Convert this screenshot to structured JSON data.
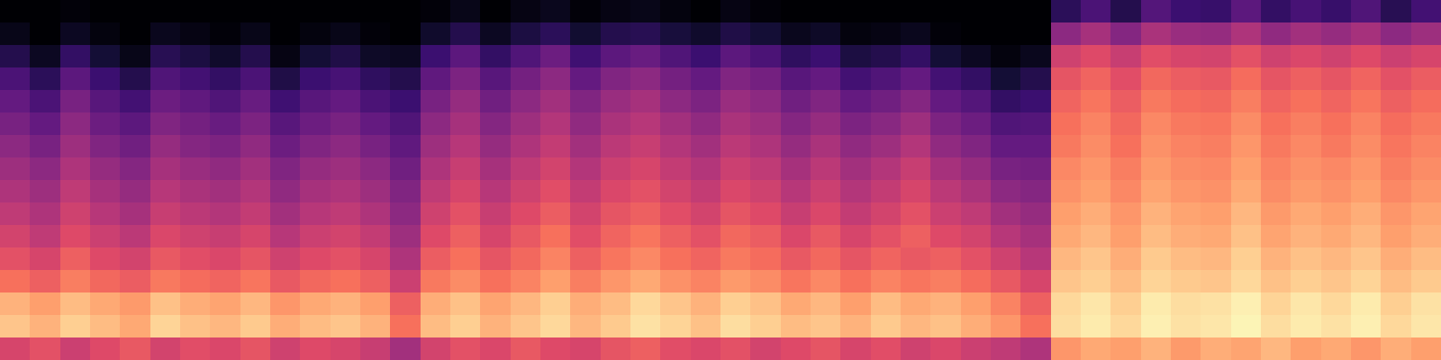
{
  "chart_data": {
    "type": "heatmap",
    "color": "magma",
    "tick_labels": false,
    "zlim": [
      0,
      100
    ],
    "cells": [
      [
        58,
        62,
        55,
        60,
        64,
        57,
        61,
        59,
        63,
        56,
        60,
        58,
        54,
        45,
        57,
        62,
        59,
        64,
        60,
        58,
        63,
        66,
        61,
        59,
        62,
        57,
        60,
        63,
        58,
        61,
        56,
        59,
        55,
        52,
        48,
        78,
        82,
        80,
        84,
        79,
        83,
        81,
        85,
        80,
        82,
        78,
        83,
        80
      ],
      [
        88,
        84,
        90,
        86,
        82,
        91,
        87,
        85,
        89,
        83,
        86,
        88,
        84,
        70,
        86,
        90,
        84,
        88,
        92,
        85,
        89,
        94,
        91,
        87,
        93,
        90,
        86,
        88,
        84,
        89,
        85,
        87,
        83,
        78,
        70,
        93,
        96,
        92,
        97,
        94,
        95,
        98,
        93,
        96,
        94,
        97,
        92,
        95
      ],
      [
        84,
        80,
        86,
        82,
        79,
        87,
        83,
        81,
        85,
        78,
        82,
        84,
        80,
        66,
        83,
        87,
        81,
        85,
        90,
        83,
        86,
        92,
        88,
        84,
        90,
        87,
        82,
        85,
        80,
        86,
        82,
        84,
        80,
        74,
        66,
        92,
        95,
        90,
        96,
        93,
        94,
        97,
        91,
        95,
        92,
        96,
        90,
        94
      ],
      [
        70,
        66,
        73,
        68,
        65,
        72,
        69,
        67,
        71,
        64,
        68,
        70,
        66,
        55,
        72,
        76,
        70,
        74,
        80,
        73,
        78,
        82,
        77,
        74,
        79,
        76,
        71,
        75,
        70,
        74,
        71,
        73,
        69,
        64,
        58,
        88,
        90,
        86,
        91,
        89,
        88,
        92,
        87,
        90,
        88,
        91,
        86,
        89
      ],
      [
        62,
        58,
        66,
        60,
        57,
        64,
        61,
        59,
        63,
        56,
        60,
        62,
        58,
        48,
        65,
        70,
        63,
        68,
        74,
        66,
        71,
        75,
        70,
        67,
        72,
        69,
        64,
        68,
        63,
        67,
        64,
        66,
        62,
        56,
        50,
        85,
        88,
        83,
        89,
        86,
        85,
        90,
        84,
        87,
        85,
        88,
        83,
        86
      ],
      [
        57,
        52,
        60,
        55,
        51,
        59,
        56,
        54,
        58,
        50,
        55,
        57,
        53,
        44,
        60,
        66,
        58,
        64,
        70,
        61,
        67,
        71,
        66,
        62,
        68,
        65,
        59,
        64,
        58,
        62,
        66,
        60,
        57,
        50,
        46,
        82,
        85,
        80,
        86,
        83,
        82,
        87,
        81,
        84,
        82,
        85,
        80,
        83
      ],
      [
        52,
        48,
        56,
        50,
        46,
        54,
        51,
        49,
        53,
        45,
        50,
        52,
        48,
        40,
        56,
        62,
        54,
        60,
        65,
        57,
        63,
        66,
        61,
        57,
        63,
        60,
        54,
        59,
        53,
        57,
        62,
        55,
        52,
        45,
        42,
        80,
        83,
        78,
        84,
        81,
        80,
        85,
        79,
        82,
        80,
        83,
        78,
        81
      ],
      [
        48,
        44,
        52,
        46,
        42,
        50,
        47,
        45,
        49,
        41,
        46,
        48,
        44,
        37,
        52,
        58,
        50,
        56,
        61,
        53,
        59,
        62,
        57,
        53,
        59,
        56,
        50,
        55,
        49,
        53,
        58,
        51,
        47,
        40,
        38,
        77,
        80,
        75,
        81,
        78,
        77,
        82,
        76,
        79,
        77,
        80,
        75,
        78
      ],
      [
        44,
        40,
        48,
        42,
        38,
        46,
        43,
        41,
        45,
        37,
        42,
        44,
        40,
        33,
        48,
        54,
        46,
        52,
        57,
        49,
        55,
        58,
        53,
        49,
        55,
        52,
        46,
        51,
        45,
        49,
        54,
        46,
        42,
        35,
        34,
        75,
        78,
        73,
        79,
        76,
        75,
        80,
        74,
        77,
        75,
        78,
        73,
        76
      ],
      [
        40,
        35,
        44,
        37,
        33,
        42,
        38,
        36,
        41,
        32,
        37,
        40,
        35,
        29,
        44,
        50,
        42,
        48,
        53,
        45,
        51,
        54,
        49,
        45,
        51,
        48,
        42,
        47,
        41,
        44,
        49,
        41,
        37,
        30,
        30,
        72,
        76,
        70,
        77,
        74,
        73,
        78,
        72,
        75,
        72,
        76,
        71,
        74
      ],
      [
        35,
        30,
        40,
        32,
        28,
        37,
        34,
        31,
        36,
        27,
        32,
        35,
        30,
        25,
        40,
        46,
        38,
        44,
        49,
        41,
        47,
        50,
        45,
        41,
        47,
        44,
        38,
        42,
        36,
        39,
        44,
        36,
        32,
        25,
        26,
        70,
        74,
        68,
        75,
        72,
        71,
        76,
        70,
        73,
        70,
        74,
        69,
        72
      ],
      [
        30,
        24,
        35,
        27,
        22,
        32,
        29,
        25,
        31,
        21,
        27,
        30,
        24,
        20,
        35,
        42,
        33,
        40,
        45,
        37,
        43,
        46,
        40,
        36,
        43,
        40,
        33,
        37,
        30,
        33,
        38,
        30,
        26,
        18,
        20,
        67,
        71,
        65,
        72,
        69,
        68,
        73,
        67,
        70,
        67,
        71,
        66,
        69
      ],
      [
        24,
        16,
        28,
        20,
        14,
        25,
        22,
        18,
        24,
        13,
        20,
        23,
        17,
        14,
        29,
        36,
        27,
        34,
        40,
        30,
        37,
        40,
        34,
        30,
        37,
        34,
        27,
        30,
        22,
        25,
        30,
        22,
        18,
        10,
        14,
        63,
        67,
        61,
        68,
        65,
        64,
        69,
        63,
        66,
        63,
        67,
        62,
        65
      ],
      [
        14,
        6,
        18,
        10,
        4,
        15,
        12,
        8,
        14,
        3,
        10,
        13,
        7,
        6,
        20,
        28,
        18,
        25,
        32,
        21,
        28,
        31,
        25,
        20,
        28,
        24,
        17,
        20,
        12,
        14,
        18,
        10,
        6,
        2,
        5,
        56,
        60,
        54,
        61,
        58,
        57,
        62,
        56,
        59,
        56,
        60,
        55,
        58
      ],
      [
        4,
        0,
        6,
        2,
        0,
        5,
        3,
        1,
        4,
        0,
        2,
        4,
        1,
        0,
        8,
        14,
        6,
        12,
        16,
        9,
        14,
        15,
        11,
        8,
        13,
        10,
        5,
        7,
        2,
        3,
        5,
        1,
        0,
        0,
        0,
        40,
        46,
        38,
        47,
        43,
        42,
        48,
        41,
        45,
        42,
        46,
        40,
        44
      ],
      [
        0,
        0,
        1,
        0,
        0,
        0,
        0,
        0,
        0,
        0,
        0,
        0,
        0,
        0,
        1,
        4,
        0,
        3,
        5,
        1,
        3,
        4,
        2,
        0,
        3,
        1,
        0,
        0,
        0,
        0,
        0,
        0,
        0,
        0,
        0,
        16,
        24,
        14,
        26,
        20,
        19,
        28,
        18,
        23,
        19,
        25,
        15,
        22
      ]
    ]
  }
}
